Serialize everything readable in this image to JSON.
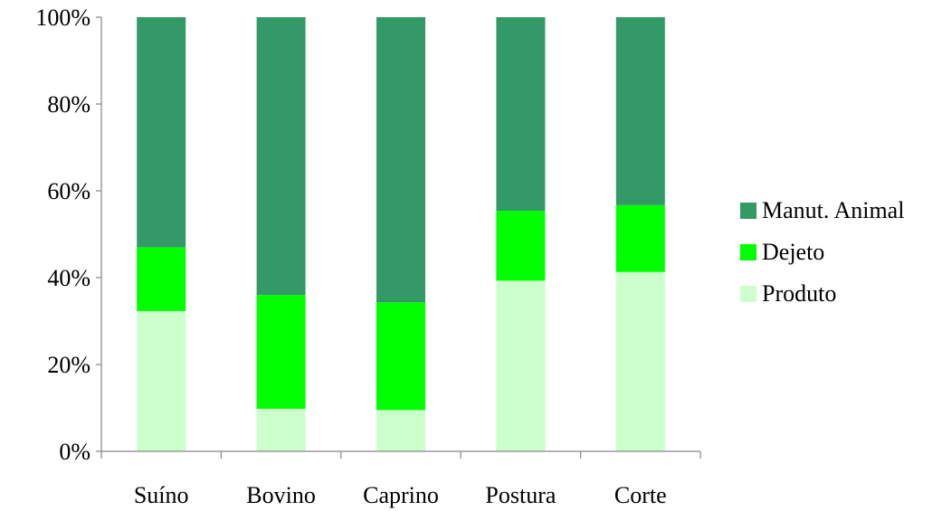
{
  "chart_data": {
    "type": "bar",
    "stacked": "percent",
    "categories": [
      "Suíno",
      "Bovino",
      "Caprino",
      "Postura",
      "Corte"
    ],
    "series": [
      {
        "name": "Produto",
        "values": [
          32.3,
          9.8,
          9.5,
          39.3,
          41.3
        ],
        "color": "#ccffcc"
      },
      {
        "name": "Dejeto",
        "values": [
          14.7,
          26.2,
          24.8,
          16.1,
          15.4
        ],
        "color": "#00ff00"
      },
      {
        "name": "Manut. Animal",
        "values": [
          53.0,
          64.0,
          65.7,
          44.6,
          43.3
        ],
        "color": "#339966"
      }
    ],
    "ylim": [
      0,
      100
    ],
    "yticks": [
      "0%",
      "20%",
      "40%",
      "60%",
      "80%",
      "100%"
    ],
    "ytick_values": [
      0,
      20,
      40,
      60,
      80,
      100
    ],
    "legend": {
      "position": "right",
      "order": [
        "Manut. Animal",
        "Dejeto",
        "Produto"
      ]
    },
    "grid": false,
    "axis_color": "#868686"
  }
}
